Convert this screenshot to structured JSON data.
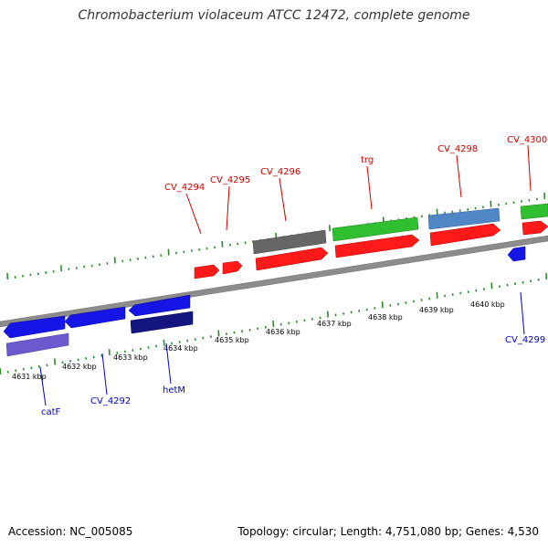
{
  "title": "Chromobacterium violaceum ATCC 12472, complete genome",
  "footer": {
    "accession": "Accession: NC_005085",
    "summary": "Topology: circular; Length: 4,751,080 bp; Genes: 4,530"
  },
  "colors": {
    "ruler_green": "#2e8b2e",
    "backbone": "#8c8c8c",
    "forward_label": "#cc0000",
    "reverse_label": "#0000cc",
    "gene_red": "#ff1a1a",
    "gene_green": "#2fbf2f",
    "gene_steelblue": "#4f86c6",
    "gene_gray": "#666666",
    "gene_blue": "#1515e6",
    "gene_navy": "#151580",
    "gene_purple": "#6a5acd"
  },
  "ticks": [
    {
      "label": "4631 kbp"
    },
    {
      "label": "4632 kbp"
    },
    {
      "label": "4633 kbp"
    },
    {
      "label": "4634 kbp"
    },
    {
      "label": "4635 kbp"
    },
    {
      "label": "4636 kbp"
    },
    {
      "label": "4637 kbp"
    },
    {
      "label": "4638 kbp"
    },
    {
      "label": "4639 kbp"
    },
    {
      "label": "4640 kbp"
    }
  ],
  "forward_labels": [
    {
      "text": "CV_4294"
    },
    {
      "text": "CV_4295"
    },
    {
      "text": "CV_4296"
    },
    {
      "text": "trg"
    },
    {
      "text": "CV_4298"
    },
    {
      "text": "CV_4300"
    }
  ],
  "reverse_labels": [
    {
      "text": "catF"
    },
    {
      "text": "CV_4292"
    },
    {
      "text": "hetM"
    },
    {
      "text": "CV_4299"
    }
  ]
}
